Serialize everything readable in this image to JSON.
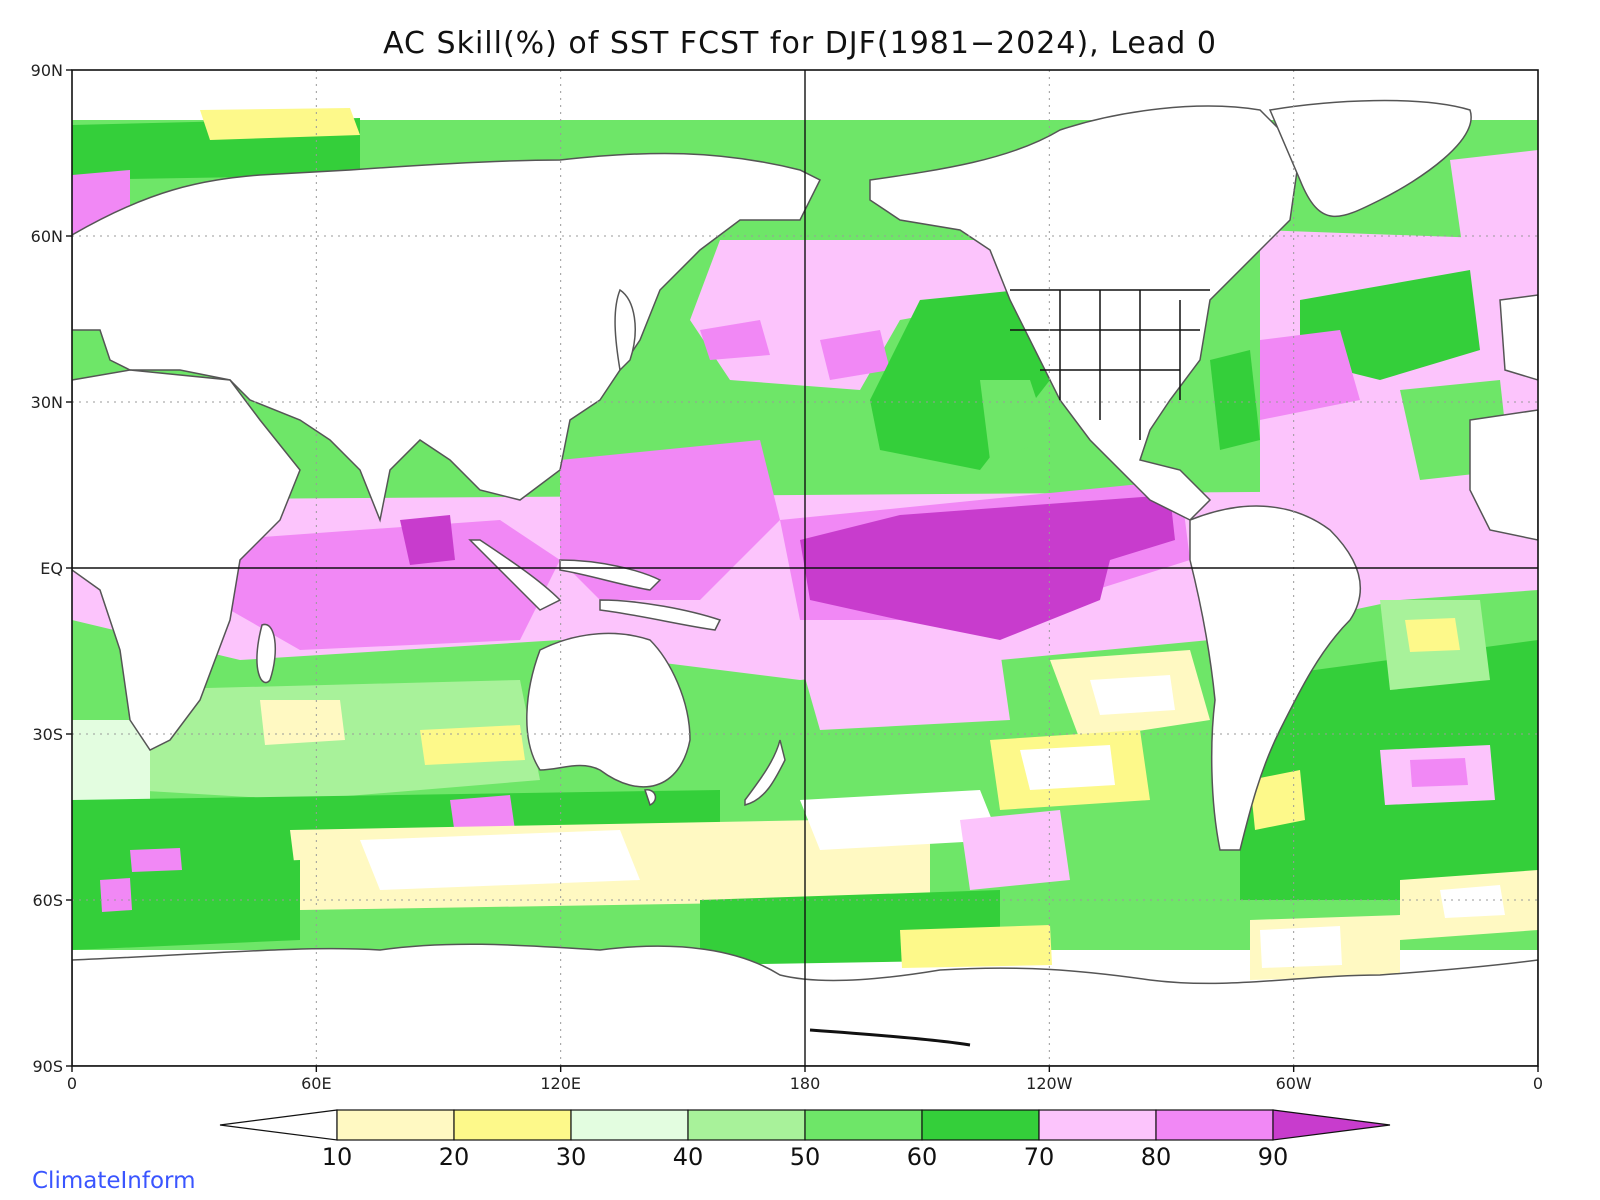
{
  "title": "AC Skill(%) of SST FCST for DJF(1981−2024), Lead 0",
  "credit": "ClimateInform",
  "axes": {
    "lat_labels": [
      "90N",
      "60N",
      "30N",
      "EQ",
      "30S",
      "60S",
      "90S"
    ],
    "lat_values": [
      90,
      60,
      30,
      0,
      -30,
      -60,
      -90
    ],
    "lon_labels": [
      "0",
      "60E",
      "120E",
      "180",
      "120W",
      "60W",
      "0"
    ],
    "lon_values": [
      0,
      60,
      120,
      180,
      240,
      300,
      360
    ]
  },
  "colorbar": {
    "levels": [
      10,
      20,
      30,
      40,
      50,
      60,
      70,
      80,
      90
    ],
    "labels": [
      "10",
      "20",
      "30",
      "40",
      "50",
      "60",
      "70",
      "80",
      "90"
    ],
    "colors": [
      "#ffffff",
      "#fff9c2",
      "#fdf98a",
      "#e3fde0",
      "#a8f29a",
      "#6ee668",
      "#34cf3a",
      "#fcc4fc",
      "#f188f5",
      "#c83ccd"
    ]
  },
  "colors": {
    "land": "#ffffff",
    "coast": "#555555",
    "grid": "#9a9a9a"
  }
}
